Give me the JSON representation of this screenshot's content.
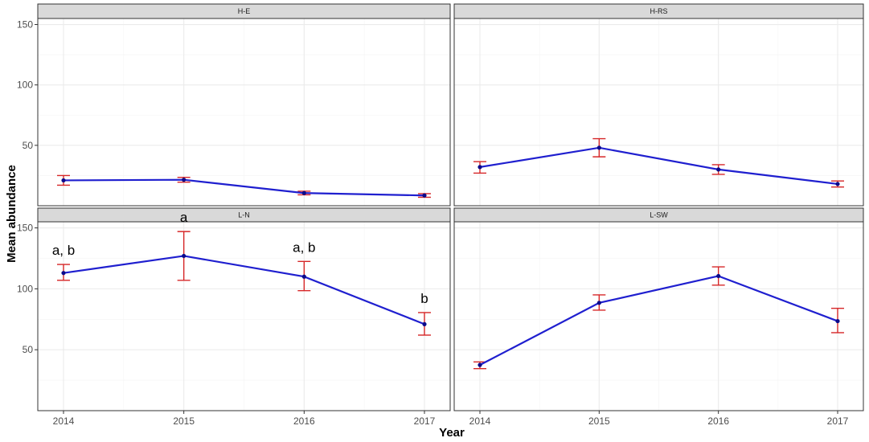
{
  "chart_data": {
    "type": "line",
    "xlabel": "Year",
    "ylabel": "Mean abundance",
    "x": [
      2014,
      2015,
      2016,
      2017
    ],
    "ylim": [
      0,
      155
    ],
    "yticks": [
      50,
      100,
      150
    ],
    "grid": true,
    "colors": {
      "line": "#1f1fcf",
      "points": "#0b0b8a",
      "error_bars": "#d62728",
      "strip": "#d9d9d9"
    },
    "panels": [
      {
        "title": "H-E",
        "values": [
          21,
          21.5,
          10.5,
          8.5
        ],
        "lower": [
          17,
          19.5,
          9,
          7
        ],
        "upper": [
          25,
          23.5,
          12,
          10
        ],
        "annotations": []
      },
      {
        "title": "H-RS",
        "values": [
          32,
          48,
          30,
          18
        ],
        "lower": [
          27,
          40.5,
          26,
          15.5
        ],
        "upper": [
          36.5,
          55.5,
          34,
          20.5
        ],
        "annotations": []
      },
      {
        "title": "L-N",
        "values": [
          113,
          127,
          110,
          71
        ],
        "lower": [
          107,
          107,
          98.5,
          62
        ],
        "upper": [
          120,
          147,
          122.5,
          80.5
        ],
        "annotations": [
          {
            "x": 2014,
            "text": "a, b"
          },
          {
            "x": 2015,
            "text": "a"
          },
          {
            "x": 2016,
            "text": "a, b"
          },
          {
            "x": 2017,
            "text": "b"
          }
        ]
      },
      {
        "title": "L-SW",
        "values": [
          37.5,
          88.5,
          110.5,
          73.5
        ],
        "lower": [
          34.5,
          82.5,
          103,
          64
        ],
        "upper": [
          40,
          95,
          118,
          84
        ],
        "annotations": []
      }
    ]
  }
}
